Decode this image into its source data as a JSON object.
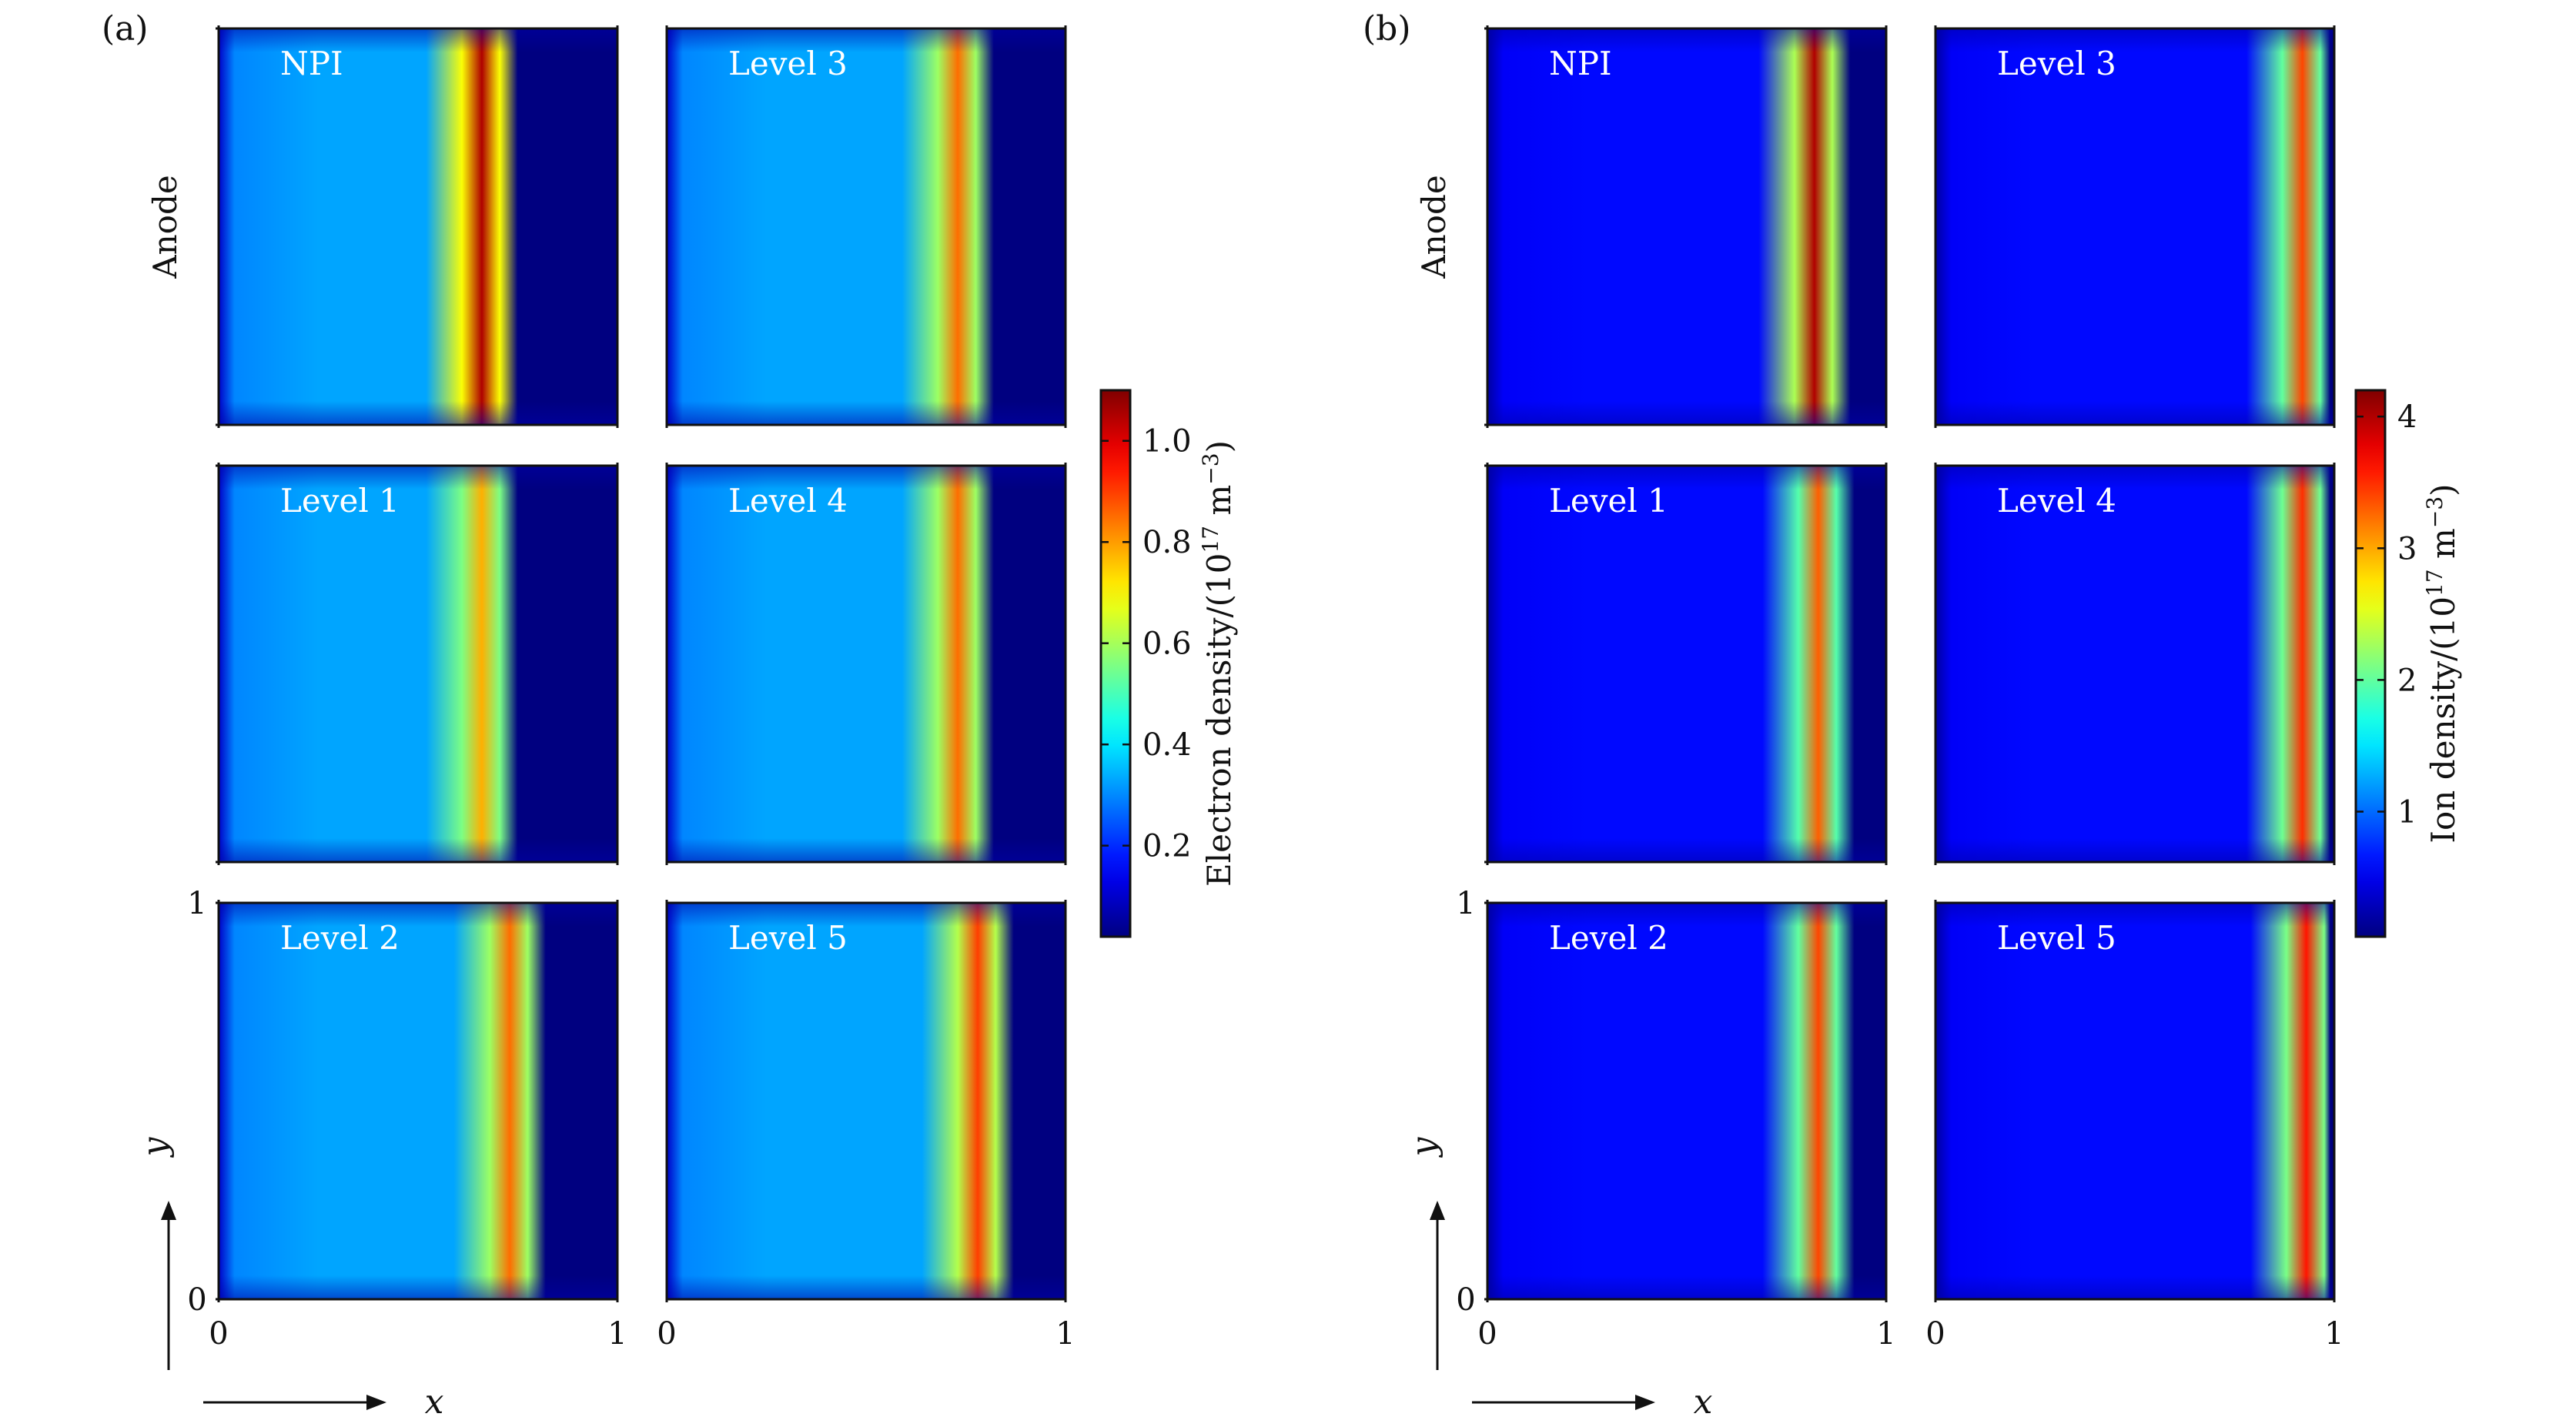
{
  "figure": {
    "panel_labels": [
      "(a)",
      "(b)"
    ],
    "row_label": "Anode",
    "axis": {
      "x_label": "x",
      "y_label": "y",
      "x_ticks": [
        "0",
        "1"
      ],
      "y_ticks": [
        "0",
        "1"
      ]
    }
  },
  "chart_data": [
    {
      "type": "heatmap",
      "panel": "(a)",
      "quantity": "Electron density",
      "colorbar": {
        "label": "Electron density/(10",
        "label_sup": "17",
        "label_unit": " m",
        "label_unit_sup": "−3",
        "label_close": ")",
        "range": [
          0.02,
          1.1
        ],
        "ticks": [
          0.2,
          0.4,
          0.6,
          0.8,
          1.0
        ],
        "tick_labels": [
          "0.2",
          "0.4",
          "0.6",
          "0.8",
          "1.0"
        ],
        "colormap": "jet"
      },
      "xlim": [
        0,
        1
      ],
      "ylim": [
        0,
        1
      ],
      "subplots": [
        {
          "title": "NPI",
          "peak_x": 0.66,
          "peak_value": 1.05,
          "bulk_value": 0.33
        },
        {
          "title": "Level 3",
          "peak_x": 0.73,
          "peak_value": 0.85,
          "bulk_value": 0.33
        },
        {
          "title": "Level 1",
          "peak_x": 0.66,
          "peak_value": 0.78,
          "bulk_value": 0.33
        },
        {
          "title": "Level 4",
          "peak_x": 0.73,
          "peak_value": 0.85,
          "bulk_value": 0.33
        },
        {
          "title": "Level 2",
          "peak_x": 0.73,
          "peak_value": 0.85,
          "bulk_value": 0.33
        },
        {
          "title": "Level 5",
          "peak_x": 0.78,
          "peak_value": 0.9,
          "bulk_value": 0.33
        }
      ]
    },
    {
      "type": "heatmap",
      "panel": "(b)",
      "quantity": "Ion density",
      "colorbar": {
        "label": "Ion density/(10",
        "label_sup": "17",
        "label_unit": " m",
        "label_unit_sup": "−3",
        "label_close": ")",
        "range": [
          0.05,
          4.2
        ],
        "ticks": [
          1,
          2,
          3,
          4
        ],
        "tick_labels": [
          "1",
          "2",
          "3",
          "4"
        ],
        "colormap": "jet"
      },
      "xlim": [
        0,
        1
      ],
      "ylim": [
        0,
        1
      ],
      "subplots": [
        {
          "title": "NPI",
          "peak_x": 0.82,
          "peak_value": 4.0,
          "bulk_value": 0.6
        },
        {
          "title": "Level 3",
          "peak_x": 0.92,
          "peak_value": 3.4,
          "bulk_value": 0.6
        },
        {
          "title": "Level 1",
          "peak_x": 0.83,
          "peak_value": 3.3,
          "bulk_value": 0.6
        },
        {
          "title": "Level 4",
          "peak_x": 0.92,
          "peak_value": 3.5,
          "bulk_value": 0.6
        },
        {
          "title": "Level 2",
          "peak_x": 0.83,
          "peak_value": 3.4,
          "bulk_value": 0.6
        },
        {
          "title": "Level 5",
          "peak_x": 0.93,
          "peak_value": 3.6,
          "bulk_value": 0.6
        }
      ]
    }
  ]
}
